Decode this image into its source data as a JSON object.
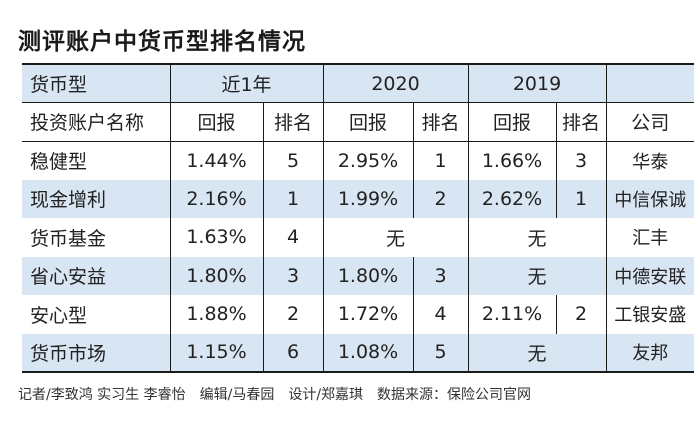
{
  "title": "测评账户中货币型排名情况",
  "header1": {
    "type_label": "货币型",
    "period1": "近1年",
    "period2": "2020",
    "period3": "2019"
  },
  "header2": {
    "name_label": "投资账户名称",
    "return1": "回报",
    "rank1": "排名",
    "return2": "回报",
    "rank2": "排名",
    "return3": "回报",
    "rank3": "排名",
    "company": "公司"
  },
  "rows": [
    {
      "name": "稳健型",
      "r1": "1.44%",
      "k1": "5",
      "r2": "2.95%",
      "k2": "1",
      "r3": "1.66%",
      "k3": "3",
      "company": "华泰"
    },
    {
      "name": "现金增利",
      "r1": "2.16%",
      "k1": "1",
      "r2": "1.99%",
      "k2": "2",
      "r3": "2.62%",
      "k3": "1",
      "company": "中信保诚"
    },
    {
      "name": "货币基金",
      "r1": "1.63%",
      "k1": "4",
      "y2020_none": "无",
      "y2019_none": "无",
      "company": "汇丰"
    },
    {
      "name": "省心安益",
      "r1": "1.80%",
      "k1": "3",
      "r2": "1.80%",
      "k2": "3",
      "y2019_none": "无",
      "company": "中德安联"
    },
    {
      "name": "安心型",
      "r1": "1.88%",
      "k1": "2",
      "r2": "1.72%",
      "k2": "4",
      "r3": "2.11%",
      "k3": "2",
      "company": "工银安盛"
    },
    {
      "name": "货币市场",
      "r1": "1.15%",
      "k1": "6",
      "r2": "1.08%",
      "k2": "5",
      "y2019_none": "无",
      "company": "友邦"
    }
  ],
  "footer": "记者/李致鸿 实习生 李睿怡　编辑/马春园　设计/郑嘉琪　数据来源：保险公司官网"
}
